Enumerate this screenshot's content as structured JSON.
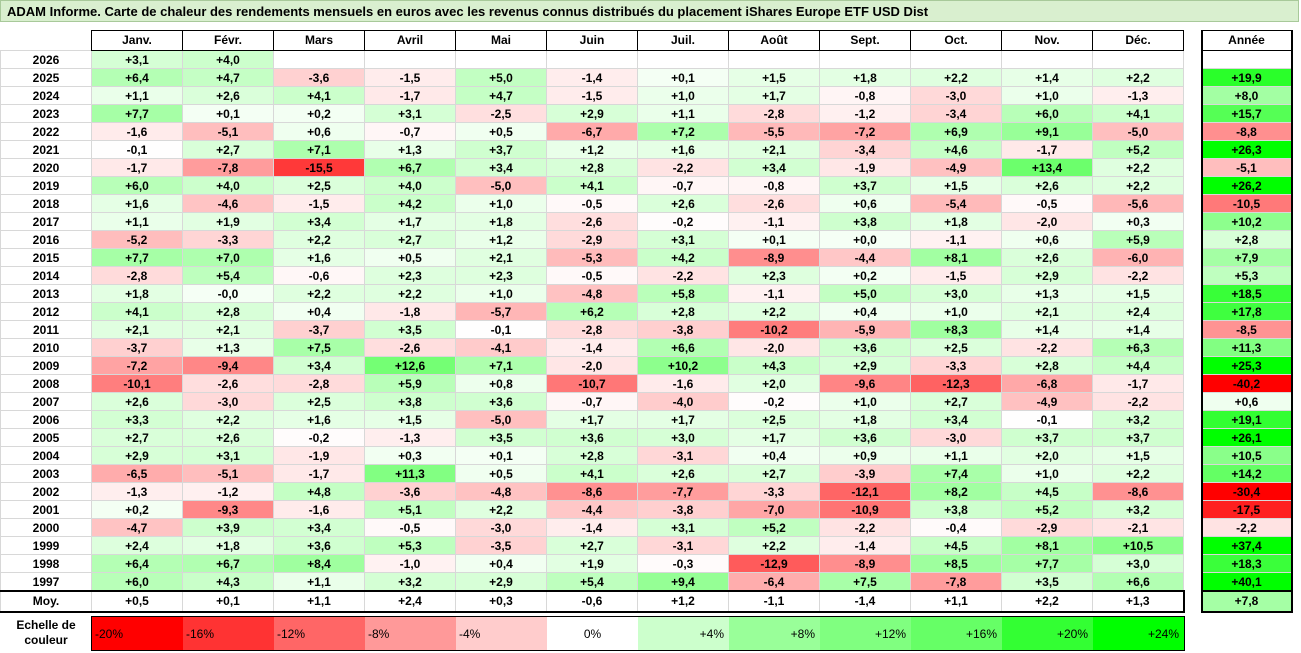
{
  "title": "ADAM Informe. Carte de chaleur des rendements mensuels en euros avec les revenus connus distribués du placement iShares Europe ETF USD Dist",
  "chart_data": {
    "type": "heatmap",
    "columns": [
      "Janv.",
      "Févr.",
      "Mars",
      "Avril",
      "Mai",
      "Juin",
      "Juil.",
      "Août",
      "Sept.",
      "Oct.",
      "Nov.",
      "Déc."
    ],
    "year_header": "Année",
    "rows": [
      {
        "year": "2026",
        "months": [
          "+3,1",
          "+4,0",
          "",
          "",
          "",
          "",
          "",
          "",
          "",
          "",
          "",
          ""
        ],
        "total": ""
      },
      {
        "year": "2025",
        "months": [
          "+6,4",
          "+4,7",
          "-3,6",
          "-1,5",
          "+5,0",
          "-1,4",
          "+0,1",
          "+1,5",
          "+1,8",
          "+2,2",
          "+1,4",
          "+2,2"
        ],
        "total": "+19,9"
      },
      {
        "year": "2024",
        "months": [
          "+1,1",
          "+2,6",
          "+4,1",
          "-1,7",
          "+4,7",
          "-1,5",
          "+1,0",
          "+1,7",
          "-0,8",
          "-3,0",
          "+1,0",
          "-1,3"
        ],
        "total": "+8,0"
      },
      {
        "year": "2023",
        "months": [
          "+7,7",
          "+0,1",
          "+0,2",
          "+3,1",
          "-2,5",
          "+2,9",
          "+1,1",
          "-2,8",
          "-1,2",
          "-3,4",
          "+6,0",
          "+4,1"
        ],
        "total": "+15,7"
      },
      {
        "year": "2022",
        "months": [
          "-1,6",
          "-5,1",
          "+0,6",
          "-0,7",
          "+0,5",
          "-6,7",
          "+7,2",
          "-5,5",
          "-7,2",
          "+6,9",
          "+9,1",
          "-5,0"
        ],
        "total": "-8,8"
      },
      {
        "year": "2021",
        "months": [
          "-0,1",
          "+2,7",
          "+7,1",
          "+1,3",
          "+3,7",
          "+1,2",
          "+1,6",
          "+2,1",
          "-3,4",
          "+4,6",
          "-1,7",
          "+5,2"
        ],
        "total": "+26,3"
      },
      {
        "year": "2020",
        "months": [
          "-1,7",
          "-7,8",
          "-15,5",
          "+6,7",
          "+3,4",
          "+2,8",
          "-2,2",
          "+3,4",
          "-1,9",
          "-4,9",
          "+13,4",
          "+2,2"
        ],
        "total": "-5,1"
      },
      {
        "year": "2019",
        "months": [
          "+6,0",
          "+4,0",
          "+2,5",
          "+4,0",
          "-5,0",
          "+4,1",
          "-0,7",
          "-0,8",
          "+3,7",
          "+1,5",
          "+2,6",
          "+2,2"
        ],
        "total": "+26,2"
      },
      {
        "year": "2018",
        "months": [
          "+1,6",
          "-4,6",
          "-1,5",
          "+4,2",
          "+1,0",
          "-0,5",
          "+2,6",
          "-2,6",
          "+0,6",
          "-5,4",
          "-0,5",
          "-5,6"
        ],
        "total": "-10,5"
      },
      {
        "year": "2017",
        "months": [
          "+1,1",
          "+1,9",
          "+3,4",
          "+1,7",
          "+1,8",
          "-2,6",
          "-0,2",
          "-1,1",
          "+3,8",
          "+1,8",
          "-2,0",
          "+0,3"
        ],
        "total": "+10,2"
      },
      {
        "year": "2016",
        "months": [
          "-5,2",
          "-3,3",
          "+2,2",
          "+2,7",
          "+1,2",
          "-2,9",
          "+3,1",
          "+0,1",
          "+0,0",
          "-1,1",
          "+0,6",
          "+5,9"
        ],
        "total": "+2,8"
      },
      {
        "year": "2015",
        "months": [
          "+7,7",
          "+7,0",
          "+1,6",
          "+0,5",
          "+2,1",
          "-5,3",
          "+4,2",
          "-8,9",
          "-4,4",
          "+8,1",
          "+2,6",
          "-6,0"
        ],
        "total": "+7,9"
      },
      {
        "year": "2014",
        "months": [
          "-2,8",
          "+5,4",
          "-0,6",
          "+2,3",
          "+2,3",
          "-0,5",
          "-2,2",
          "+2,3",
          "+0,2",
          "-1,5",
          "+2,9",
          "-2,2"
        ],
        "total": "+5,3"
      },
      {
        "year": "2013",
        "months": [
          "+1,8",
          "-0,0",
          "+2,2",
          "+2,2",
          "+1,0",
          "-4,8",
          "+5,8",
          "-1,1",
          "+5,0",
          "+3,0",
          "+1,3",
          "+1,5"
        ],
        "total": "+18,5"
      },
      {
        "year": "2012",
        "months": [
          "+4,1",
          "+2,8",
          "+0,4",
          "-1,8",
          "-5,7",
          "+6,2",
          "+2,8",
          "+2,2",
          "+0,4",
          "+1,0",
          "+2,1",
          "+2,4"
        ],
        "total": "+17,8"
      },
      {
        "year": "2011",
        "months": [
          "+2,1",
          "+2,1",
          "-3,7",
          "+3,5",
          "-0,1",
          "-2,8",
          "-3,8",
          "-10,2",
          "-5,9",
          "+8,3",
          "+1,4",
          "+1,4"
        ],
        "total": "-8,5"
      },
      {
        "year": "2010",
        "months": [
          "-3,7",
          "+1,3",
          "+7,5",
          "-2,6",
          "-4,1",
          "-1,4",
          "+6,6",
          "-2,0",
          "+3,6",
          "+2,5",
          "-2,2",
          "+6,3"
        ],
        "total": "+11,3"
      },
      {
        "year": "2009",
        "months": [
          "-7,2",
          "-9,4",
          "+3,4",
          "+12,6",
          "+7,1",
          "-2,0",
          "+10,2",
          "+4,3",
          "+2,9",
          "-3,3",
          "+2,8",
          "+4,4"
        ],
        "total": "+25,3"
      },
      {
        "year": "2008",
        "months": [
          "-10,1",
          "-2,6",
          "-2,8",
          "+5,9",
          "+0,8",
          "-10,7",
          "-1,6",
          "+2,0",
          "-9,6",
          "-12,3",
          "-6,8",
          "-1,7"
        ],
        "total": "-40,2"
      },
      {
        "year": "2007",
        "months": [
          "+2,6",
          "-3,0",
          "+2,5",
          "+3,8",
          "+3,6",
          "-0,7",
          "-4,0",
          "-0,2",
          "+1,0",
          "+2,7",
          "-4,9",
          "-2,2"
        ],
        "total": "+0,6"
      },
      {
        "year": "2006",
        "months": [
          "+3,3",
          "+2,2",
          "+1,6",
          "+1,5",
          "-5,0",
          "+1,7",
          "+1,7",
          "+2,5",
          "+1,8",
          "+3,4",
          "-0,1",
          "+3,2"
        ],
        "total": "+19,1"
      },
      {
        "year": "2005",
        "months": [
          "+2,7",
          "+2,6",
          "-0,2",
          "-1,3",
          "+3,5",
          "+3,6",
          "+3,0",
          "+1,7",
          "+3,6",
          "-3,0",
          "+3,7",
          "+3,7"
        ],
        "total": "+26,1"
      },
      {
        "year": "2004",
        "months": [
          "+2,9",
          "+3,1",
          "-1,9",
          "+0,3",
          "+0,1",
          "+2,8",
          "-3,1",
          "+0,4",
          "+0,9",
          "+1,1",
          "+2,0",
          "+1,5"
        ],
        "total": "+10,5"
      },
      {
        "year": "2003",
        "months": [
          "-6,5",
          "-5,1",
          "-1,7",
          "+11,3",
          "+0,5",
          "+4,1",
          "+2,6",
          "+2,7",
          "-3,9",
          "+7,4",
          "+1,0",
          "+2,2"
        ],
        "total": "+14,2"
      },
      {
        "year": "2002",
        "months": [
          "-1,3",
          "-1,2",
          "+4,8",
          "-3,6",
          "-4,8",
          "-8,6",
          "-7,7",
          "-3,3",
          "-12,1",
          "+8,2",
          "+4,5",
          "-8,6"
        ],
        "total": "-30,4"
      },
      {
        "year": "2001",
        "months": [
          "+0,2",
          "-9,3",
          "-1,6",
          "+5,1",
          "+2,2",
          "-4,4",
          "-3,8",
          "-7,0",
          "-10,9",
          "+3,8",
          "+5,2",
          "+3,2"
        ],
        "total": "-17,5"
      },
      {
        "year": "2000",
        "months": [
          "-4,7",
          "+3,9",
          "+3,4",
          "-0,5",
          "-3,0",
          "-1,4",
          "+3,1",
          "+5,2",
          "-2,2",
          "-0,4",
          "-2,9",
          "-2,1"
        ],
        "total": "-2,2"
      },
      {
        "year": "1999",
        "months": [
          "+2,4",
          "+1,8",
          "+3,6",
          "+5,3",
          "-3,5",
          "+2,7",
          "-3,1",
          "+2,2",
          "-1,4",
          "+4,5",
          "+8,1",
          "+10,5"
        ],
        "total": "+37,4"
      },
      {
        "year": "1998",
        "months": [
          "+6,4",
          "+6,7",
          "+8,4",
          "-1,0",
          "+0,4",
          "+1,9",
          "-0,3",
          "-12,9",
          "-8,9",
          "+8,5",
          "+7,7",
          "+3,0"
        ],
        "total": "+18,3"
      },
      {
        "year": "1997",
        "months": [
          "+6,0",
          "+4,3",
          "+1,1",
          "+3,2",
          "+2,9",
          "+5,4",
          "+9,4",
          "-6,4",
          "+7,5",
          "-7,8",
          "+3,5",
          "+6,6"
        ],
        "total": "+40,1"
      }
    ],
    "mean_row": {
      "label": "Moy.",
      "months": [
        "+0,5",
        "+0,1",
        "+1,1",
        "+2,4",
        "+0,3",
        "-0,6",
        "+1,2",
        "-1,1",
        "-1,4",
        "+1,1",
        "+2,2",
        "+1,3"
      ],
      "total": "+7,8"
    },
    "color_scale": {
      "label": "Echelle de couleur",
      "stops": [
        {
          "label": "-20%",
          "value": -20,
          "color": "#ff0000"
        },
        {
          "label": "-16%",
          "value": -16,
          "color": "#ff3333"
        },
        {
          "label": "-12%",
          "value": -12,
          "color": "#ff6666"
        },
        {
          "label": "-8%",
          "value": -8,
          "color": "#ff9999"
        },
        {
          "label": "-4%",
          "value": -4,
          "color": "#ffcccc"
        },
        {
          "label": "0%",
          "value": 0,
          "color": "#ffffff"
        },
        {
          "label": "+4%",
          "value": 4,
          "color": "#ccffcc"
        },
        {
          "label": "+8%",
          "value": 8,
          "color": "#99ff99"
        },
        {
          "label": "+12%",
          "value": 12,
          "color": "#80ff80"
        },
        {
          "label": "+16%",
          "value": 16,
          "color": "#66ff66"
        },
        {
          "label": "+20%",
          "value": 20,
          "color": "#33ff33"
        },
        {
          "label": "+24%",
          "value": 24,
          "color": "#00ff00"
        }
      ]
    }
  }
}
